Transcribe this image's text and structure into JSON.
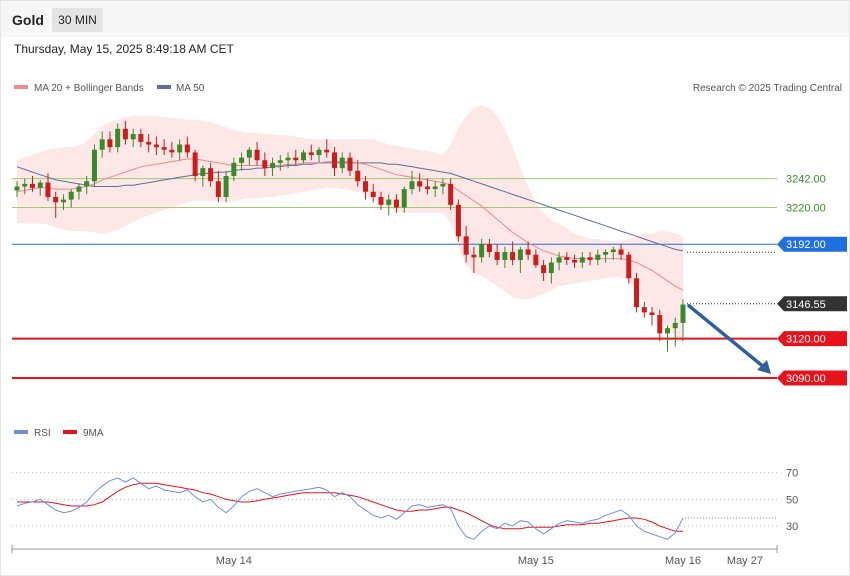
{
  "header": {
    "symbol": "Gold",
    "timeframe": "30 MIN",
    "datetime": "Thursday, May 15, 2025 8:49:18 AM CET"
  },
  "legend": {
    "ma20": "MA 20 + Bollinger Bands",
    "ma50": "MA 50",
    "copyright": "Research © 2025 Trading Central",
    "rsi": "RSI",
    "rsi_ma": "9MA"
  },
  "colors": {
    "up": "#3a8a2a",
    "down": "#cc1c1c",
    "boll_fill": "#fde3e3",
    "ma20": "#f08a8a",
    "ma50": "#5b6f9c",
    "support_red": "#e8121c",
    "pivot_blue": "#1f6fe0",
    "resist_green": "#9ccc6e",
    "arrow": "#2f5f9f",
    "rsi": "#6f8fe0",
    "rsi_ma": "#e8121c",
    "current_tag": "#333333"
  },
  "chart_data": [
    {
      "type": "candlestick",
      "price_range": [
        3061,
        3305
      ],
      "levels": [
        {
          "label": "3242.00",
          "value": 3242.0,
          "kind": "resistance"
        },
        {
          "label": "3220.00",
          "value": 3220.0,
          "kind": "resistance"
        },
        {
          "label": "3192.00",
          "value": 3192.0,
          "kind": "pivot"
        },
        {
          "label": "3146.55",
          "value": 3146.55,
          "kind": "current"
        },
        {
          "label": "3120.00",
          "value": 3120.0,
          "kind": "support"
        },
        {
          "label": "3090.00",
          "value": 3090.0,
          "kind": "support"
        }
      ],
      "candles": [
        [
          3233,
          3240,
          3228,
          3236
        ],
        [
          3236,
          3242,
          3230,
          3238
        ],
        [
          3238,
          3244,
          3232,
          3235
        ],
        [
          3235,
          3241,
          3229,
          3239
        ],
        [
          3239,
          3246,
          3225,
          3228
        ],
        [
          3228,
          3232,
          3212,
          3224
        ],
        [
          3224,
          3230,
          3218,
          3226
        ],
        [
          3226,
          3234,
          3220,
          3232
        ],
        [
          3232,
          3238,
          3226,
          3236
        ],
        [
          3236,
          3244,
          3230,
          3240
        ],
        [
          3240,
          3268,
          3236,
          3264
        ],
        [
          3264,
          3278,
          3258,
          3272
        ],
        [
          3272,
          3278,
          3262,
          3266
        ],
        [
          3266,
          3284,
          3262,
          3280
        ],
        [
          3280,
          3286,
          3268,
          3272
        ],
        [
          3272,
          3280,
          3266,
          3276
        ],
        [
          3276,
          3280,
          3266,
          3270
        ],
        [
          3270,
          3276,
          3262,
          3268
        ],
        [
          3268,
          3274,
          3260,
          3266
        ],
        [
          3266,
          3272,
          3260,
          3264
        ],
        [
          3264,
          3270,
          3258,
          3262
        ],
        [
          3262,
          3272,
          3256,
          3268
        ],
        [
          3268,
          3274,
          3258,
          3262
        ],
        [
          3262,
          3264,
          3240,
          3244
        ],
        [
          3244,
          3252,
          3236,
          3250
        ],
        [
          3250,
          3254,
          3236,
          3240
        ],
        [
          3240,
          3248,
          3224,
          3228
        ],
        [
          3228,
          3248,
          3224,
          3244
        ],
        [
          3244,
          3258,
          3240,
          3254
        ],
        [
          3254,
          3262,
          3248,
          3258
        ],
        [
          3258,
          3266,
          3252,
          3264
        ],
        [
          3264,
          3270,
          3252,
          3256
        ],
        [
          3256,
          3262,
          3244,
          3250
        ],
        [
          3250,
          3258,
          3244,
          3254
        ],
        [
          3254,
          3260,
          3248,
          3256
        ],
        [
          3256,
          3262,
          3250,
          3258
        ],
        [
          3258,
          3264,
          3252,
          3256
        ],
        [
          3256,
          3264,
          3254,
          3262
        ],
        [
          3262,
          3268,
          3256,
          3260
        ],
        [
          3260,
          3266,
          3254,
          3264
        ],
        [
          3264,
          3272,
          3258,
          3262
        ],
        [
          3262,
          3266,
          3244,
          3250
        ],
        [
          3250,
          3262,
          3246,
          3258
        ],
        [
          3258,
          3262,
          3244,
          3248
        ],
        [
          3248,
          3256,
          3236,
          3240
        ],
        [
          3240,
          3244,
          3226,
          3232
        ],
        [
          3232,
          3238,
          3224,
          3228
        ],
        [
          3228,
          3232,
          3218,
          3222
        ],
        [
          3222,
          3230,
          3214,
          3226
        ],
        [
          3226,
          3230,
          3216,
          3220
        ],
        [
          3220,
          3236,
          3216,
          3234
        ],
        [
          3234,
          3248,
          3230,
          3240
        ],
        [
          3240,
          3246,
          3232,
          3236
        ],
        [
          3236,
          3242,
          3230,
          3234
        ],
        [
          3234,
          3240,
          3228,
          3236
        ],
        [
          3236,
          3242,
          3230,
          3238
        ],
        [
          3238,
          3242,
          3218,
          3222
        ],
        [
          3222,
          3226,
          3194,
          3198
        ],
        [
          3198,
          3206,
          3178,
          3184
        ],
        [
          3184,
          3190,
          3170,
          3182
        ],
        [
          3182,
          3196,
          3178,
          3192
        ],
        [
          3192,
          3196,
          3182,
          3186
        ],
        [
          3186,
          3192,
          3176,
          3180
        ],
        [
          3180,
          3190,
          3174,
          3186
        ],
        [
          3186,
          3194,
          3176,
          3180
        ],
        [
          3180,
          3190,
          3170,
          3188
        ],
        [
          3188,
          3194,
          3180,
          3184
        ],
        [
          3184,
          3188,
          3174,
          3176
        ],
        [
          3176,
          3180,
          3164,
          3170
        ],
        [
          3170,
          3182,
          3162,
          3178
        ],
        [
          3178,
          3186,
          3172,
          3182
        ],
        [
          3182,
          3186,
          3176,
          3180
        ],
        [
          3180,
          3184,
          3174,
          3178
        ],
        [
          3178,
          3186,
          3174,
          3182
        ],
        [
          3182,
          3186,
          3176,
          3180
        ],
        [
          3180,
          3188,
          3176,
          3184
        ],
        [
          3184,
          3188,
          3178,
          3186
        ],
        [
          3186,
          3190,
          3180,
          3188
        ],
        [
          3188,
          3192,
          3180,
          3184
        ],
        [
          3184,
          3186,
          3162,
          3166
        ],
        [
          3166,
          3170,
          3140,
          3144
        ],
        [
          3144,
          3148,
          3136,
          3140
        ],
        [
          3140,
          3144,
          3130,
          3138
        ],
        [
          3138,
          3142,
          3118,
          3124
        ],
        [
          3124,
          3130,
          3110,
          3128
        ],
        [
          3128,
          3136,
          3114,
          3132
        ],
        [
          3132,
          3150,
          3118,
          3146
        ]
      ],
      "ma20": [
        3232,
        3233,
        3234,
        3235,
        3235,
        3234,
        3234,
        3234,
        3235,
        3236,
        3238,
        3241,
        3243,
        3245,
        3247,
        3249,
        3251,
        3252,
        3253,
        3254,
        3255,
        3256,
        3257,
        3257,
        3256,
        3255,
        3254,
        3253,
        3252,
        3252,
        3252,
        3252,
        3252,
        3252,
        3252,
        3253,
        3253,
        3254,
        3254,
        3254,
        3255,
        3255,
        3255,
        3255,
        3254,
        3253,
        3251,
        3249,
        3247,
        3245,
        3244,
        3243,
        3242,
        3241,
        3240,
        3239,
        3237,
        3233,
        3229,
        3225,
        3221,
        3216,
        3211,
        3206,
        3201,
        3197,
        3193,
        3190,
        3187,
        3185,
        3183,
        3182,
        3181,
        3181,
        3181,
        3181,
        3181,
        3181,
        3181,
        3180,
        3178,
        3175,
        3172,
        3168,
        3164,
        3160,
        3157
      ],
      "boll_upper": [
        3256,
        3258,
        3260,
        3262,
        3264,
        3265,
        3266,
        3266,
        3267,
        3270,
        3276,
        3282,
        3285,
        3287,
        3289,
        3290,
        3290,
        3290,
        3290,
        3289,
        3288,
        3288,
        3287,
        3287,
        3286,
        3285,
        3283,
        3281,
        3279,
        3278,
        3277,
        3277,
        3276,
        3276,
        3275,
        3275,
        3274,
        3273,
        3272,
        3272,
        3272,
        3272,
        3272,
        3272,
        3272,
        3272,
        3272,
        3270,
        3268,
        3267,
        3266,
        3265,
        3264,
        3263,
        3262,
        3260,
        3268,
        3280,
        3290,
        3296,
        3298,
        3296,
        3290,
        3280,
        3266,
        3250,
        3236,
        3224,
        3216,
        3210,
        3208,
        3204,
        3200,
        3198,
        3196,
        3196,
        3195,
        3194,
        3194,
        3196,
        3198,
        3200,
        3200,
        3202,
        3202,
        3200,
        3198
      ],
      "boll_lower": [
        3208,
        3208,
        3208,
        3208,
        3207,
        3205,
        3203,
        3202,
        3202,
        3202,
        3201,
        3200,
        3201,
        3203,
        3206,
        3209,
        3212,
        3214,
        3216,
        3218,
        3220,
        3222,
        3224,
        3225,
        3225,
        3225,
        3225,
        3224,
        3225,
        3226,
        3227,
        3227,
        3228,
        3228,
        3229,
        3230,
        3231,
        3232,
        3233,
        3234,
        3235,
        3235,
        3234,
        3233,
        3232,
        3230,
        3227,
        3224,
        3220,
        3217,
        3216,
        3216,
        3216,
        3216,
        3216,
        3216,
        3208,
        3190,
        3176,
        3170,
        3168,
        3164,
        3160,
        3156,
        3152,
        3150,
        3150,
        3152,
        3154,
        3157,
        3160,
        3161,
        3162,
        3163,
        3164,
        3165,
        3166,
        3167,
        3167,
        3164,
        3156,
        3148,
        3142,
        3136,
        3128,
        3122,
        3116
      ],
      "ma50": [
        3251,
        3249,
        3247,
        3245,
        3243,
        3241,
        3240,
        3239,
        3238,
        3237,
        3236,
        3236,
        3236,
        3236,
        3237,
        3237,
        3238,
        3239,
        3240,
        3241,
        3242,
        3243,
        3244,
        3245,
        3246,
        3246,
        3247,
        3247,
        3248,
        3249,
        3249,
        3250,
        3250,
        3251,
        3251,
        3252,
        3252,
        3253,
        3253,
        3254,
        3254,
        3254,
        3254,
        3254,
        3254,
        3254,
        3254,
        3254,
        3253,
        3253,
        3252,
        3251,
        3250,
        3249,
        3248,
        3247,
        3246,
        3244,
        3242,
        3240,
        3238,
        3236,
        3234,
        3232,
        3230,
        3228,
        3226,
        3224,
        3222,
        3220,
        3218,
        3216,
        3214,
        3212,
        3210,
        3208,
        3206,
        3204,
        3202,
        3200,
        3198,
        3196,
        3194,
        3192,
        3190,
        3188,
        3187
      ]
    },
    {
      "type": "line",
      "name": "RSI",
      "ylim": [
        15,
        90
      ],
      "yticks": [
        70,
        50,
        30
      ],
      "rsi": [
        45,
        47,
        48,
        50,
        46,
        42,
        40,
        41,
        44,
        48,
        55,
        60,
        64,
        66,
        63,
        66,
        62,
        58,
        60,
        57,
        56,
        55,
        57,
        52,
        48,
        50,
        44,
        40,
        45,
        52,
        56,
        58,
        55,
        52,
        54,
        55,
        56,
        57,
        58,
        59,
        57,
        52,
        55,
        52,
        46,
        42,
        38,
        36,
        38,
        35,
        40,
        45,
        46,
        44,
        45,
        46,
        43,
        30,
        22,
        20,
        26,
        30,
        28,
        32,
        30,
        34,
        33,
        28,
        24,
        28,
        32,
        34,
        33,
        32,
        34,
        35,
        38,
        40,
        42,
        38,
        30,
        26,
        24,
        22,
        20,
        25,
        36
      ],
      "rsi_ma": [
        48,
        48,
        48,
        48,
        48,
        47,
        46,
        45,
        45,
        45,
        46,
        48,
        52,
        56,
        59,
        61,
        62,
        62,
        62,
        61,
        60,
        59,
        58,
        57,
        55,
        54,
        52,
        50,
        49,
        48,
        48,
        49,
        50,
        51,
        52,
        53,
        54,
        55,
        55,
        55,
        55,
        55,
        54,
        53,
        52,
        50,
        48,
        46,
        44,
        42,
        41,
        41,
        42,
        42,
        43,
        44,
        44,
        42,
        40,
        37,
        34,
        31,
        29,
        28,
        28,
        28,
        29,
        29,
        29,
        29,
        30,
        31,
        31,
        31,
        32,
        32,
        33,
        34,
        35,
        36,
        36,
        35,
        33,
        30,
        28,
        26,
        26
      ]
    }
  ],
  "xaxis": {
    "labels": [
      {
        "text": "May 14",
        "bar": 28
      },
      {
        "text": "May 15",
        "bar": 67
      },
      {
        "text": "May 16",
        "bar": 86
      },
      {
        "text": "May 27",
        "bar": 94
      }
    ]
  }
}
